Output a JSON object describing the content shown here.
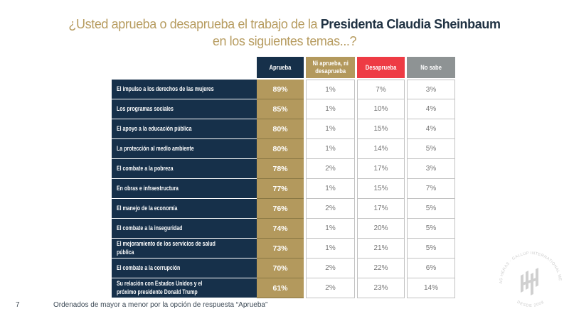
{
  "title": {
    "line1_regular": "¿Usted aprueba o desaprueba el trabajo de la ",
    "line1_bold": "Presidenta Claudia Sheinbaum",
    "line2": "en los siguientes temas...?"
  },
  "colors": {
    "navy": "#16304A",
    "gold": "#B3995D",
    "red": "#EE3B44",
    "gray": "#8E9394",
    "title_gold": "#B79C60",
    "title_navy": "#1F3142",
    "white_cell_text": "#767676",
    "white_cell_border": "#C2C2C2"
  },
  "chart_data": {
    "type": "table",
    "title": "¿Usted aprueba o desaprueba el trabajo de la Presidenta Claudia Sheinbaum en los siguientes temas...?",
    "columns": [
      "Aprueba",
      "Ni aprueba, ni desaprueba",
      "Desaprueba",
      "No sabe"
    ],
    "rows": [
      {
        "topic": "El impulso a los derechos de las mujeres",
        "values": [
          "89%",
          "1%",
          "7%",
          "3%"
        ]
      },
      {
        "topic": "Los programas sociales",
        "values": [
          "85%",
          "1%",
          "10%",
          "4%"
        ]
      },
      {
        "topic": "El apoyo a la educación pública",
        "values": [
          "80%",
          "1%",
          "15%",
          "4%"
        ]
      },
      {
        "topic": "La protección al medio ambiente",
        "values": [
          "80%",
          "1%",
          "14%",
          "5%"
        ]
      },
      {
        "topic": "El combate a la pobreza",
        "values": [
          "78%",
          "2%",
          "17%",
          "3%"
        ]
      },
      {
        "topic": "En obras e infraestructura",
        "values": [
          "77%",
          "1%",
          "15%",
          "7%"
        ]
      },
      {
        "topic": "El manejo de la economía",
        "values": [
          "76%",
          "2%",
          "17%",
          "5%"
        ]
      },
      {
        "topic": "El combate a la inseguridad",
        "values": [
          "74%",
          "1%",
          "20%",
          "5%"
        ]
      },
      {
        "topic": "El mejoramiento de los servicios de salud pública",
        "values": [
          "73%",
          "1%",
          "21%",
          "5%"
        ]
      },
      {
        "topic": "El combate a la corrupción",
        "values": [
          "70%",
          "2%",
          "22%",
          "6%"
        ]
      },
      {
        "topic": "Su relación con Estados Unidos y el próximo presidente Donald Trump",
        "values": [
          "61%",
          "2%",
          "23%",
          "14%"
        ]
      }
    ],
    "sort_note": "Ordenados de mayor a menor por la opción de respuesta “Aprueba”"
  },
  "footer": {
    "page_number": "7",
    "note": "Ordenados de mayor a menor por la opción de respuesta “Aprueba”"
  },
  "watermark": {
    "arc_text": "· DE LAS HERAS · GALLUP INTERNATIONAL MEMBER ·",
    "bottom_text": "DESDE 2008"
  }
}
